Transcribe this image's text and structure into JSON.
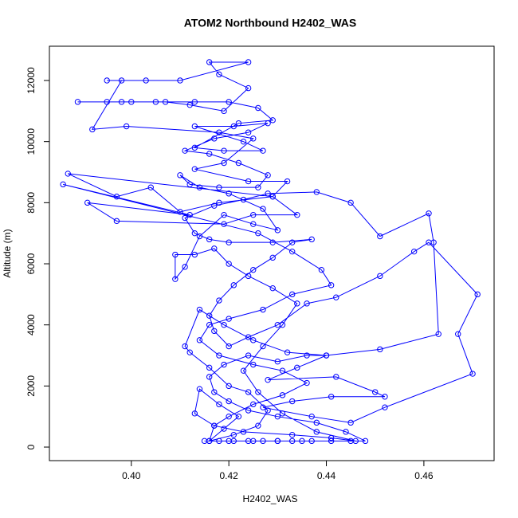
{
  "chart_data": {
    "type": "line",
    "title": "ATOM2 Northbound H2402_WAS",
    "x_label": "H2402_WAS",
    "y_label": "Altitude (m)",
    "color": "#0000ff",
    "marker": "circle",
    "x": [
      0.415,
      0.418,
      0.421,
      0.424,
      0.427,
      0.43,
      0.433,
      0.437,
      0.441,
      0.445,
      0.448,
      0.444,
      0.438,
      0.43,
      0.424,
      0.42,
      0.417,
      0.416,
      0.419,
      0.424,
      0.43,
      0.436,
      0.44,
      0.434,
      0.428,
      0.442,
      0.45,
      0.452,
      0.441,
      0.433,
      0.427,
      0.437,
      0.445,
      0.452,
      0.47,
      0.467,
      0.471,
      0.461,
      0.458,
      0.451,
      0.442,
      0.436,
      0.43,
      0.424,
      0.42,
      0.417,
      0.416,
      0.418,
      0.421,
      0.425,
      0.429,
      0.433,
      0.437,
      0.429,
      0.42,
      0.416,
      0.413,
      0.411,
      0.417,
      0.423,
      0.428,
      0.438,
      0.445,
      0.451,
      0.461,
      0.462,
      0.463,
      0.451,
      0.44,
      0.432,
      0.425,
      0.419,
      0.414,
      0.411,
      0.412,
      0.416,
      0.42,
      0.424,
      0.428,
      0.426,
      0.421,
      0.416,
      0.419,
      0.422,
      0.418,
      0.414,
      0.413,
      0.417,
      0.423,
      0.433,
      0.441,
      0.446,
      0.438,
      0.431,
      0.426,
      0.423,
      0.427,
      0.431,
      0.434,
      0.429,
      0.424,
      0.42,
      0.417,
      0.413,
      0.409,
      0.409,
      0.411,
      0.414,
      0.419,
      0.425,
      0.43,
      0.427,
      0.42,
      0.414,
      0.41,
      0.412,
      0.418,
      0.426,
      0.428,
      0.422,
      0.416,
      0.411,
      0.417,
      0.424,
      0.428,
      0.421,
      0.413,
      0.423,
      0.427,
      0.419,
      0.413,
      0.422,
      0.429,
      0.426,
      0.42,
      0.413,
      0.405,
      0.398,
      0.389,
      0.395,
      0.4,
      0.407,
      0.412,
      0.419,
      0.424,
      0.418,
      0.416,
      0.424,
      0.41,
      0.403,
      0.395,
      0.398,
      0.392,
      0.399,
      0.418,
      0.425,
      0.419,
      0.413,
      0.424,
      0.432,
      0.429,
      0.418,
      0.41,
      0.404,
      0.397,
      0.387,
      0.429,
      0.434,
      0.425,
      0.419,
      0.397,
      0.391,
      0.412,
      0.386,
      0.426,
      0.433,
      0.439,
      0.441,
      0.433,
      0.427,
      0.42,
      0.416,
      0.414,
      0.418,
      0.425,
      0.431,
      0.436,
      0.431,
      0.425,
      0.42,
      0.417,
      0.416,
      0.42,
      0.425,
      0.43,
      0.435
    ],
    "values": [
      200,
      200,
      200,
      200,
      200,
      200,
      200,
      200,
      200,
      200,
      200,
      500,
      800,
      1000,
      1200,
      1500,
      1800,
      2300,
      2700,
      3000,
      2800,
      3000,
      3000,
      2600,
      2200,
      2300,
      1800,
      1650,
      1650,
      1500,
      1300,
      1000,
      800,
      1300,
      2400,
      3700,
      5000,
      6700,
      6400,
      5600,
      4900,
      4700,
      4000,
      3600,
      3300,
      3800,
      4300,
      4800,
      5300,
      5800,
      6200,
      6700,
      6800,
      6700,
      6700,
      6800,
      7000,
      7500,
      7900,
      8100,
      8300,
      8350,
      8000,
      6900,
      7650,
      6700,
      3700,
      3200,
      3000,
      3100,
      3500,
      4000,
      4500,
      3300,
      3100,
      2600,
      2000,
      1800,
      1200,
      700,
      400,
      200,
      600,
      1000,
      1400,
      1900,
      1100,
      700,
      500,
      400,
      300,
      200,
      500,
      1100,
      1800,
      2500,
      3300,
      4000,
      4700,
      5200,
      5600,
      6000,
      6500,
      6300,
      6300,
      5500,
      5900,
      6900,
      7600,
      7300,
      7100,
      7800,
      8300,
      8500,
      8900,
      8600,
      8500,
      8500,
      8900,
      9300,
      9600,
      9700,
      10100,
      10300,
      10600,
      10500,
      10500,
      10000,
      9700,
      9700,
      9800,
      10600,
      10700,
      11100,
      11300,
      11300,
      11300,
      11300,
      11300,
      11300,
      11300,
      11300,
      11200,
      11000,
      11750,
      12200,
      12600,
      12600,
      12000,
      12000,
      12000,
      12000,
      10400,
      10500,
      10300,
      10100,
      9300,
      9100,
      8700,
      8700,
      8200,
      8000,
      7700,
      8500,
      8200,
      8950,
      8200,
      7600,
      7600,
      7300,
      7400,
      8000,
      7600,
      8600,
      7000,
      6400,
      5800,
      5300,
      5000,
      4500,
      4200,
      4000,
      3500,
      3000,
      2700,
      2500,
      2100,
      1700,
      1400,
      1000,
      700,
      200,
      200,
      200,
      200,
      200
    ],
    "xlim": [
      0.3832,
      0.4744
    ],
    "ylim": [
      -443,
      13122
    ],
    "xticks": [
      {
        "value": 0.4,
        "label": "0.40"
      },
      0.42,
      0.44,
      0.46
    ],
    "yticks": [
      0,
      2000,
      4000,
      6000,
      8000,
      10000,
      12000
    ],
    "grid": false
  }
}
